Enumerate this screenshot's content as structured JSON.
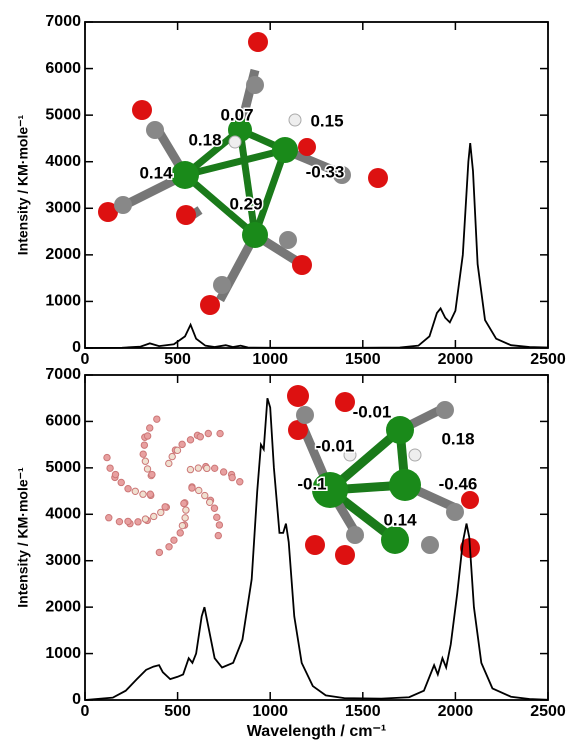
{
  "chart_data": [
    {
      "type": "line",
      "color": "#000000",
      "ylabel": "Intensity / KM·mole⁻¹",
      "xlim": [
        0,
        2500
      ],
      "xticks": [
        0,
        500,
        1000,
        1500,
        2000,
        2500
      ],
      "ylim": [
        0,
        7000
      ],
      "yticks": [
        0,
        1000,
        2000,
        3000,
        4000,
        5000,
        6000,
        7000
      ],
      "annotations": [
        "0.07",
        "0.15",
        "0.18",
        "0.14",
        "-0.33",
        "0.29"
      ],
      "x": [
        0,
        200,
        300,
        350,
        400,
        480,
        540,
        570,
        600,
        650,
        700,
        760,
        800,
        840,
        880,
        1000,
        1500,
        1700,
        1800,
        1860,
        1900,
        1920,
        1945,
        1970,
        2000,
        2040,
        2070,
        2080,
        2095,
        2120,
        2160,
        2220,
        2300,
        2400,
        2500
      ],
      "values": [
        0,
        5,
        30,
        100,
        40,
        80,
        250,
        500,
        200,
        50,
        20,
        60,
        20,
        50,
        10,
        5,
        5,
        10,
        50,
        250,
        750,
        850,
        650,
        550,
        800,
        2000,
        4000,
        4400,
        3800,
        1800,
        600,
        200,
        60,
        20,
        10
      ]
    },
    {
      "type": "line",
      "color": "#000000",
      "ylabel": "Intensity / KM·mole⁻¹",
      "xlabel": "Wavelength / cm⁻¹",
      "xlim": [
        0,
        2500
      ],
      "xticks": [
        0,
        500,
        1000,
        1500,
        2000,
        2500
      ],
      "ylim": [
        0,
        7000
      ],
      "yticks": [
        0,
        1000,
        2000,
        3000,
        4000,
        5000,
        6000,
        7000
      ],
      "annotations": [
        "-0.01",
        "-0.01",
        "0.18",
        "-0.1",
        "-0.46",
        "0.14"
      ],
      "x": [
        0,
        150,
        220,
        280,
        330,
        370,
        400,
        420,
        460,
        500,
        530,
        560,
        580,
        600,
        630,
        645,
        670,
        700,
        740,
        800,
        850,
        900,
        930,
        950,
        965,
        985,
        1000,
        1020,
        1050,
        1070,
        1085,
        1100,
        1130,
        1170,
        1230,
        1300,
        1400,
        1600,
        1750,
        1830,
        1870,
        1885,
        1905,
        1930,
        1950,
        1975,
        2010,
        2040,
        2060,
        2075,
        2100,
        2140,
        2200,
        2300,
        2400,
        2500
      ],
      "values": [
        0,
        50,
        200,
        450,
        650,
        720,
        750,
        600,
        450,
        500,
        550,
        900,
        800,
        1000,
        1800,
        2000,
        1500,
        900,
        700,
        800,
        1300,
        2600,
        4500,
        5500,
        5400,
        6500,
        6300,
        5000,
        3600,
        3600,
        3800,
        3400,
        1800,
        800,
        300,
        100,
        40,
        30,
        60,
        200,
        600,
        750,
        550,
        900,
        700,
        1200,
        2300,
        3400,
        3800,
        3500,
        2000,
        800,
        250,
        70,
        20,
        5
      ]
    }
  ]
}
